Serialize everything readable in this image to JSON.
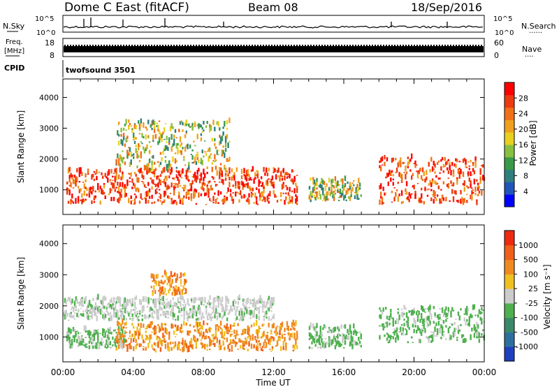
{
  "header": {
    "station": "Dome C East (fitACF)",
    "beam": "Beam 08",
    "date": "18/Sep/2016"
  },
  "noise_panel": {
    "left_label": "N.Sky",
    "right_label": "N.Search",
    "left_ticks": [
      "10^5",
      "10^0"
    ],
    "right_ticks": [
      "10^5",
      "10^0"
    ]
  },
  "freq_panel": {
    "left_label_1": "Freq.",
    "left_label_2": "[MHz]",
    "left_ticks": [
      "18",
      "8"
    ],
    "right_label": "Nave",
    "right_ticks": [
      "60",
      "0"
    ]
  },
  "cpid": {
    "label": "CPID",
    "value": "twofsound 3501"
  },
  "chart_data": [
    {
      "type": "heatmap",
      "title": "",
      "xlabel": "",
      "ylabel": "Slant Range [km]",
      "xlim": [
        0,
        24
      ],
      "ylim": [
        200,
        4600
      ],
      "y_ticks": [
        "1000",
        "2000",
        "3000",
        "4000"
      ],
      "colorbar": {
        "label": "Power [dB]",
        "ticks": [
          "28",
          "24",
          "20",
          "16",
          "12",
          "8",
          "4"
        ],
        "colors": [
          "#0000ff",
          "#2255bb",
          "#2f7f7f",
          "#3a9a4a",
          "#88c040",
          "#e8d020",
          "#f0a020",
          "#f07018",
          "#ee3a10",
          "#ff0000"
        ]
      },
      "echo_regions": [
        {
          "t_start": 0.2,
          "t_end": 13.3,
          "range_min": 500,
          "range_max": 1600,
          "level": "high"
        },
        {
          "t_start": 3.0,
          "t_end": 9.5,
          "range_min": 1600,
          "range_max": 3200,
          "level": "mixed"
        },
        {
          "t_start": 14.0,
          "t_end": 17.0,
          "range_min": 600,
          "range_max": 1300,
          "level": "mixed"
        },
        {
          "t_start": 18.0,
          "t_end": 24.0,
          "range_min": 500,
          "range_max": 2000,
          "level": "high"
        }
      ]
    },
    {
      "type": "heatmap",
      "title": "",
      "xlabel": "Time UT",
      "ylabel": "Slant Range [km]",
      "xlim": [
        0,
        24
      ],
      "ylim": [
        200,
        4600
      ],
      "x_ticks": [
        "00:00",
        "04:00",
        "08:00",
        "12:00",
        "16:00",
        "20:00",
        "00:00"
      ],
      "y_ticks": [
        "1000",
        "2000",
        "3000",
        "4000"
      ],
      "colorbar": {
        "label": "Velocity [m s⁻¹]",
        "ticks": [
          "1000",
          "500",
          "100",
          "25",
          "-25",
          "-100",
          "-500",
          "-1000"
        ],
        "colors": [
          "#1f3fbf",
          "#2f6f9f",
          "#3a8a6a",
          "#4fb04f",
          "#cccccc",
          "#f0c020",
          "#f08a20",
          "#f06018",
          "#ee2a10"
        ]
      },
      "echo_regions": [
        {
          "t_start": 0.2,
          "t_end": 3.5,
          "range_min": 600,
          "range_max": 1200,
          "level": "green"
        },
        {
          "t_start": 3.0,
          "t_end": 13.3,
          "range_min": 500,
          "range_max": 1400,
          "level": "orange"
        },
        {
          "t_start": 0.0,
          "t_end": 12.0,
          "range_min": 1500,
          "range_max": 2200,
          "level": "grey"
        },
        {
          "t_start": 5.0,
          "t_end": 7.0,
          "range_min": 2300,
          "range_max": 3000,
          "level": "orange"
        },
        {
          "t_start": 14.0,
          "t_end": 17.0,
          "range_min": 600,
          "range_max": 1300,
          "level": "green"
        },
        {
          "t_start": 18.0,
          "t_end": 24.0,
          "range_min": 800,
          "range_max": 1900,
          "level": "green"
        }
      ]
    }
  ]
}
